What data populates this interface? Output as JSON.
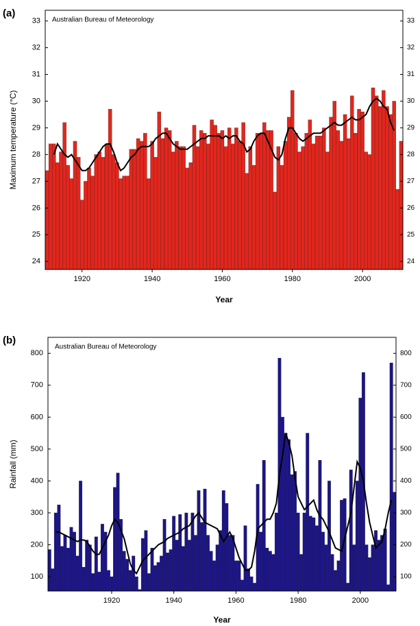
{
  "chart_data": [
    {
      "type": "bar",
      "panel_label": "(a)",
      "annotation": "Australian Bureau of Meteorology",
      "ylabel": "Maximum temperature (°C)",
      "xlabel": "Year",
      "x": [
        1910,
        1911,
        1912,
        1913,
        1914,
        1915,
        1916,
        1917,
        1918,
        1919,
        1920,
        1921,
        1922,
        1923,
        1924,
        1925,
        1926,
        1927,
        1928,
        1929,
        1930,
        1931,
        1932,
        1933,
        1934,
        1935,
        1936,
        1937,
        1938,
        1939,
        1940,
        1941,
        1942,
        1943,
        1944,
        1945,
        1946,
        1947,
        1948,
        1949,
        1950,
        1951,
        1952,
        1953,
        1954,
        1955,
        1956,
        1957,
        1958,
        1959,
        1960,
        1961,
        1962,
        1963,
        1964,
        1965,
        1966,
        1967,
        1968,
        1969,
        1970,
        1971,
        1972,
        1973,
        1974,
        1975,
        1976,
        1977,
        1978,
        1979,
        1980,
        1981,
        1982,
        1983,
        1984,
        1985,
        1986,
        1987,
        1988,
        1989,
        1990,
        1991,
        1992,
        1993,
        1994,
        1995,
        1996,
        1997,
        1998,
        1999,
        2000,
        2001,
        2002,
        2003,
        2004,
        2005,
        2006,
        2007,
        2008,
        2009,
        2010,
        2011
      ],
      "series": [
        {
          "type": "bar",
          "color": "#e3261c",
          "values": [
            27.4,
            28.4,
            28.4,
            27.7,
            28.1,
            29.2,
            27.6,
            27.1,
            28.5,
            27.9,
            26.3,
            27.0,
            27.5,
            27.2,
            28.0,
            28.1,
            27.9,
            28.4,
            29.7,
            28.0,
            27.7,
            27.1,
            27.2,
            27.2,
            28.2,
            28.2,
            28.6,
            28.5,
            28.8,
            27.1,
            28.5,
            27.9,
            29.6,
            28.6,
            29.0,
            28.9,
            28.1,
            28.5,
            28.3,
            28.3,
            27.5,
            27.7,
            29.1,
            28.3,
            28.9,
            28.8,
            28.4,
            29.3,
            29.1,
            28.8,
            28.9,
            28.3,
            29.0,
            28.4,
            29.0,
            28.5,
            29.2,
            27.3,
            28.3,
            27.6,
            28.8,
            28.8,
            29.2,
            28.9,
            28.9,
            26.6,
            28.3,
            27.6,
            28.5,
            29.4,
            30.4,
            28.8,
            28.1,
            28.3,
            28.8,
            29.3,
            28.4,
            28.7,
            28.7,
            29.0,
            28.1,
            29.4,
            30.0,
            28.9,
            28.5,
            29.5,
            28.6,
            30.2,
            28.8,
            29.7,
            29.6,
            28.1,
            28.0,
            30.5,
            30.2,
            29.8,
            30.4,
            29.8,
            29.5,
            30.0,
            26.7,
            28.5
          ]
        },
        {
          "type": "line",
          "color": "#000000",
          "values": [
            null,
            null,
            28.0,
            28.4,
            28.2,
            28.0,
            27.9,
            28.0,
            27.8,
            27.6,
            27.4,
            27.4,
            27.5,
            27.7,
            27.9,
            28.1,
            28.3,
            28.4,
            28.4,
            28.1,
            27.7,
            27.4,
            27.5,
            27.7,
            27.9,
            28.0,
            28.2,
            28.3,
            28.3,
            28.3,
            28.4,
            28.6,
            28.7,
            28.8,
            28.8,
            28.6,
            28.4,
            28.3,
            28.2,
            28.2,
            28.2,
            28.3,
            28.4,
            28.5,
            28.6,
            28.6,
            28.7,
            28.7,
            28.7,
            28.7,
            28.6,
            28.7,
            28.6,
            28.7,
            28.7,
            28.5,
            28.4,
            28.1,
            28.2,
            28.5,
            28.7,
            28.8,
            28.8,
            28.5,
            28.2,
            27.9,
            27.8,
            28.0,
            28.6,
            29.0,
            29.0,
            28.8,
            28.6,
            28.5,
            28.6,
            28.7,
            28.8,
            28.8,
            28.8,
            28.9,
            29.0,
            29.1,
            29.2,
            29.1,
            29.1,
            29.2,
            29.3,
            29.4,
            29.3,
            29.3,
            29.4,
            29.5,
            29.8,
            30.0,
            30.1,
            30.0,
            29.8,
            29.7,
            29.2,
            28.9,
            null,
            null
          ]
        }
      ],
      "xlim": [
        1909.5,
        2011.5
      ],
      "xticks": [
        1920,
        1940,
        1960,
        1980,
        2000
      ],
      "ylim": [
        23.7,
        33.4
      ],
      "yticks": [
        24,
        25,
        26,
        27,
        28,
        29,
        30,
        31,
        32,
        33
      ]
    },
    {
      "type": "bar",
      "panel_label": "(b)",
      "annotation": "Australian Bureau of Meteorology",
      "ylabel": "Rainfall (mm)",
      "xlabel": "Year",
      "x": [
        1900,
        1901,
        1902,
        1903,
        1904,
        1905,
        1906,
        1907,
        1908,
        1909,
        1910,
        1911,
        1912,
        1913,
        1914,
        1915,
        1916,
        1917,
        1918,
        1919,
        1920,
        1921,
        1922,
        1923,
        1924,
        1925,
        1926,
        1927,
        1928,
        1929,
        1930,
        1931,
        1932,
        1933,
        1934,
        1935,
        1936,
        1937,
        1938,
        1939,
        1940,
        1941,
        1942,
        1943,
        1944,
        1945,
        1946,
        1947,
        1948,
        1949,
        1950,
        1951,
        1952,
        1953,
        1954,
        1955,
        1956,
        1957,
        1958,
        1959,
        1960,
        1961,
        1962,
        1963,
        1964,
        1965,
        1966,
        1967,
        1968,
        1969,
        1970,
        1971,
        1972,
        1973,
        1974,
        1975,
        1976,
        1977,
        1978,
        1979,
        1980,
        1981,
        1982,
        1983,
        1984,
        1985,
        1986,
        1987,
        1988,
        1989,
        1990,
        1991,
        1992,
        1993,
        1994,
        1995,
        1996,
        1997,
        1998,
        1999,
        2000,
        2001,
        2002,
        2003,
        2004,
        2005,
        2006,
        2007,
        2008,
        2009,
        2010,
        2011
      ],
      "series": [
        {
          "type": "bar",
          "color": "#1c1587",
          "values": [
            185,
            125,
            300,
            325,
            195,
            230,
            190,
            255,
            240,
            165,
            400,
            130,
            215,
            200,
            110,
            225,
            115,
            265,
            240,
            120,
            100,
            380,
            425,
            280,
            180,
            155,
            120,
            165,
            100,
            60,
            220,
            245,
            110,
            190,
            135,
            145,
            165,
            280,
            175,
            185,
            290,
            215,
            295,
            195,
            300,
            215,
            300,
            230,
            370,
            270,
            375,
            230,
            180,
            150,
            200,
            245,
            370,
            330,
            230,
            230,
            150,
            150,
            90,
            260,
            125,
            100,
            80,
            390,
            240,
            465,
            190,
            180,
            170,
            300,
            785,
            600,
            550,
            530,
            420,
            430,
            300,
            170,
            300,
            550,
            290,
            285,
            260,
            465,
            240,
            200,
            400,
            170,
            120,
            150,
            340,
            345,
            80,
            435,
            200,
            400,
            660,
            740,
            200,
            160,
            200,
            245,
            215,
            230,
            250,
            75,
            770,
            365
          ]
        },
        {
          "type": "line",
          "color": "#000000",
          "values": [
            null,
            null,
            240,
            240,
            235,
            230,
            225,
            220,
            215,
            210,
            215,
            215,
            210,
            195,
            180,
            170,
            170,
            190,
            210,
            230,
            260,
            280,
            270,
            245,
            220,
            180,
            140,
            120,
            110,
            130,
            150,
            160,
            170,
            180,
            190,
            200,
            205,
            210,
            220,
            225,
            230,
            235,
            240,
            250,
            255,
            260,
            275,
            290,
            300,
            285,
            270,
            265,
            260,
            255,
            250,
            230,
            210,
            225,
            240,
            220,
            190,
            160,
            140,
            120,
            120,
            130,
            180,
            250,
            260,
            270,
            280,
            280,
            300,
            330,
            420,
            480,
            550,
            520,
            480,
            410,
            350,
            330,
            310,
            320,
            330,
            340,
            310,
            290,
            280,
            260,
            240,
            215,
            190,
            185,
            180,
            220,
            260,
            300,
            380,
            460,
            440,
            400,
            330,
            270,
            230,
            190,
            200,
            210,
            250,
            300,
            340,
            null
          ]
        }
      ],
      "xlim": [
        1899.5,
        2011.5
      ],
      "xticks": [
        1920,
        1940,
        1960,
        1980,
        2000
      ],
      "ylim": [
        55,
        850
      ],
      "yticks": [
        100,
        200,
        300,
        400,
        500,
        600,
        700,
        800
      ]
    }
  ]
}
